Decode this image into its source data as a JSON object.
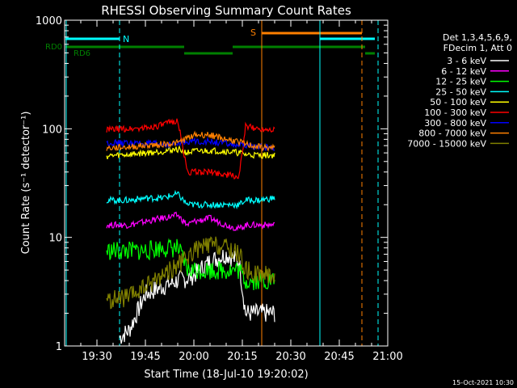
{
  "chart_data": {
    "type": "line",
    "title": "RHESSI Observing Summary Count Rates",
    "xlabel": "Start Time (18-Jul-10 19:20:02)",
    "ylabel": "Count Rate (s⁻¹ detector⁻¹)",
    "yscale": "log",
    "ylim": [
      1,
      1000
    ],
    "xlim": [
      "19:20",
      "21:00"
    ],
    "x_ticks": [
      "19:30",
      "19:45",
      "20:00",
      "20:15",
      "20:30",
      "20:45",
      "21:00"
    ],
    "y_ticks": [
      "1",
      "10",
      "100",
      "1000"
    ],
    "legend_header": [
      "Det 1,3,4,5,6,9,",
      "FDecim 1, Att 0"
    ],
    "legend_placement": "right",
    "timestamp": "15-Oct-2021 10:30",
    "series": [
      {
        "name": "3 - 6 keV",
        "color": "#ffffff",
        "x": [
          "19:37",
          "19:40",
          "19:45",
          "19:50",
          "19:55",
          "19:58",
          "20:00",
          "20:05",
          "20:10",
          "20:14",
          "20:16",
          "20:20",
          "20:25"
        ],
        "y": [
          1.2,
          1.4,
          3,
          3.5,
          4,
          4.2,
          4.5,
          6,
          7,
          6,
          2,
          2,
          2
        ]
      },
      {
        "name": "6 - 12 keV",
        "color": "#ff00ff",
        "x": [
          "19:33",
          "19:40",
          "19:45",
          "19:50",
          "19:55",
          "19:58",
          "20:00",
          "20:05",
          "20:10",
          "20:14",
          "20:16",
          "20:20",
          "20:25"
        ],
        "y": [
          13,
          13,
          14,
          15,
          16,
          13,
          14,
          15,
          13,
          12,
          13,
          13,
          13
        ]
      },
      {
        "name": "12 - 25 keV",
        "color": "#00ff00",
        "x": [
          "19:33",
          "19:40",
          "19:45",
          "19:50",
          "19:55",
          "19:58",
          "20:00",
          "20:05",
          "20:10",
          "20:14",
          "20:16",
          "20:20",
          "20:25"
        ],
        "y": [
          7.5,
          7.5,
          7.5,
          8,
          8,
          5,
          5,
          5,
          5,
          5,
          4,
          4,
          4
        ]
      },
      {
        "name": "25 - 50 keV",
        "color": "#00ffff",
        "x": [
          "19:33",
          "19:40",
          "19:45",
          "19:50",
          "19:55",
          "19:58",
          "20:00",
          "20:05",
          "20:10",
          "20:14",
          "20:16",
          "20:20",
          "20:25"
        ],
        "y": [
          22,
          22,
          23,
          23,
          25,
          20,
          20,
          20,
          20,
          20,
          22,
          22,
          23
        ]
      },
      {
        "name": "50 - 100 keV",
        "color": "#ffff00",
        "x": [
          "19:33",
          "19:40",
          "19:45",
          "19:50",
          "19:55",
          "19:58",
          "20:00",
          "20:05",
          "20:10",
          "20:14",
          "20:16",
          "20:20",
          "20:25"
        ],
        "y": [
          56,
          58,
          60,
          62,
          65,
          60,
          62,
          63,
          62,
          60,
          58,
          57,
          57
        ]
      },
      {
        "name": "100 - 300 keV",
        "color": "#ff0000",
        "x": [
          "19:33",
          "19:40",
          "19:45",
          "19:50",
          "19:55",
          "19:58",
          "20:00",
          "20:05",
          "20:10",
          "20:14",
          "20:16",
          "20:20",
          "20:25"
        ],
        "y": [
          98,
          100,
          102,
          108,
          120,
          40,
          40,
          40,
          38,
          36,
          105,
          100,
          100
        ]
      },
      {
        "name": "300 - 800 keV",
        "color": "#0000ff",
        "x": [
          "19:33",
          "19:40",
          "19:45",
          "19:50",
          "19:55",
          "19:58",
          "20:00",
          "20:05",
          "20:10",
          "20:14",
          "20:16",
          "20:20",
          "20:25"
        ],
        "y": [
          74,
          74,
          73,
          72,
          72,
          77,
          77,
          76,
          73,
          70,
          70,
          68,
          66
        ]
      },
      {
        "name": "800 - 7000 keV",
        "color": "#ff8000",
        "x": [
          "19:33",
          "19:40",
          "19:45",
          "19:50",
          "19:55",
          "19:58",
          "20:00",
          "20:05",
          "20:10",
          "20:14",
          "20:16",
          "20:20",
          "20:25"
        ],
        "y": [
          66,
          68,
          70,
          72,
          74,
          82,
          88,
          88,
          80,
          76,
          72,
          68,
          66
        ]
      },
      {
        "name": "7000 - 15000 keV",
        "color": "#808000",
        "x": [
          "19:33",
          "19:40",
          "19:45",
          "19:50",
          "19:55",
          "19:58",
          "20:00",
          "20:05",
          "20:10",
          "20:14",
          "20:16",
          "20:20",
          "20:25"
        ],
        "y": [
          2.6,
          2.8,
          3.5,
          4.5,
          5.5,
          6.5,
          7.5,
          8.5,
          8,
          7,
          5,
          4.5,
          4.5
        ]
      }
    ],
    "annotations": [
      {
        "text": "N",
        "color": "#00ffff"
      },
      {
        "text": "S",
        "color": "#ff8000"
      },
      {
        "text": "RD0",
        "color": "#008000"
      },
      {
        "text": "RD6",
        "color": "#008000"
      }
    ]
  }
}
